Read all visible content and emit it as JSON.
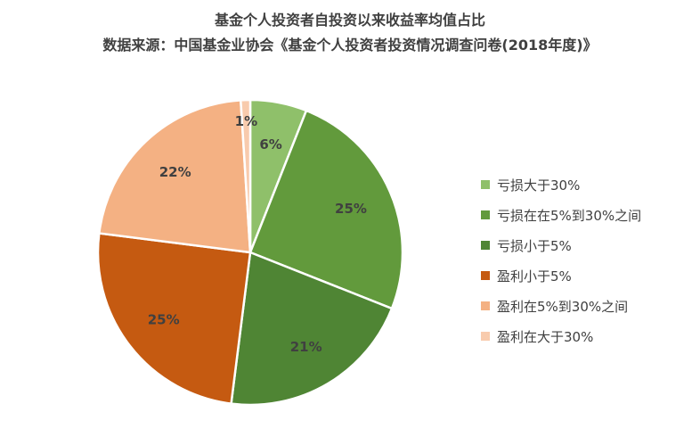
{
  "chart_data": {
    "type": "pie",
    "title": "基金个人投资者自投资以来收益率均值占比",
    "subtitle": "数据来源：中国基金业协会《基金个人投资者投资情况调查问卷(2018年度)》",
    "slices": [
      {
        "label": "亏损大于30%",
        "value": 6,
        "display": "6%",
        "color": "#8fc06a"
      },
      {
        "label": "亏损在在5%到30%之间",
        "value": 25,
        "display": "25%",
        "color": "#629a3c"
      },
      {
        "label": "亏损小于5%",
        "value": 21,
        "display": "21%",
        "color": "#4f8534"
      },
      {
        "label": "盈利小于5%",
        "value": 25,
        "display": "25%",
        "color": "#c55a11"
      },
      {
        "label": "盈利在5%到30%之间",
        "value": 22,
        "display": "22%",
        "color": "#f4b183"
      },
      {
        "label": "盈利在大于30%",
        "value": 1,
        "display": "1%",
        "color": "#f8cbad"
      }
    ],
    "legend_position": "right"
  }
}
